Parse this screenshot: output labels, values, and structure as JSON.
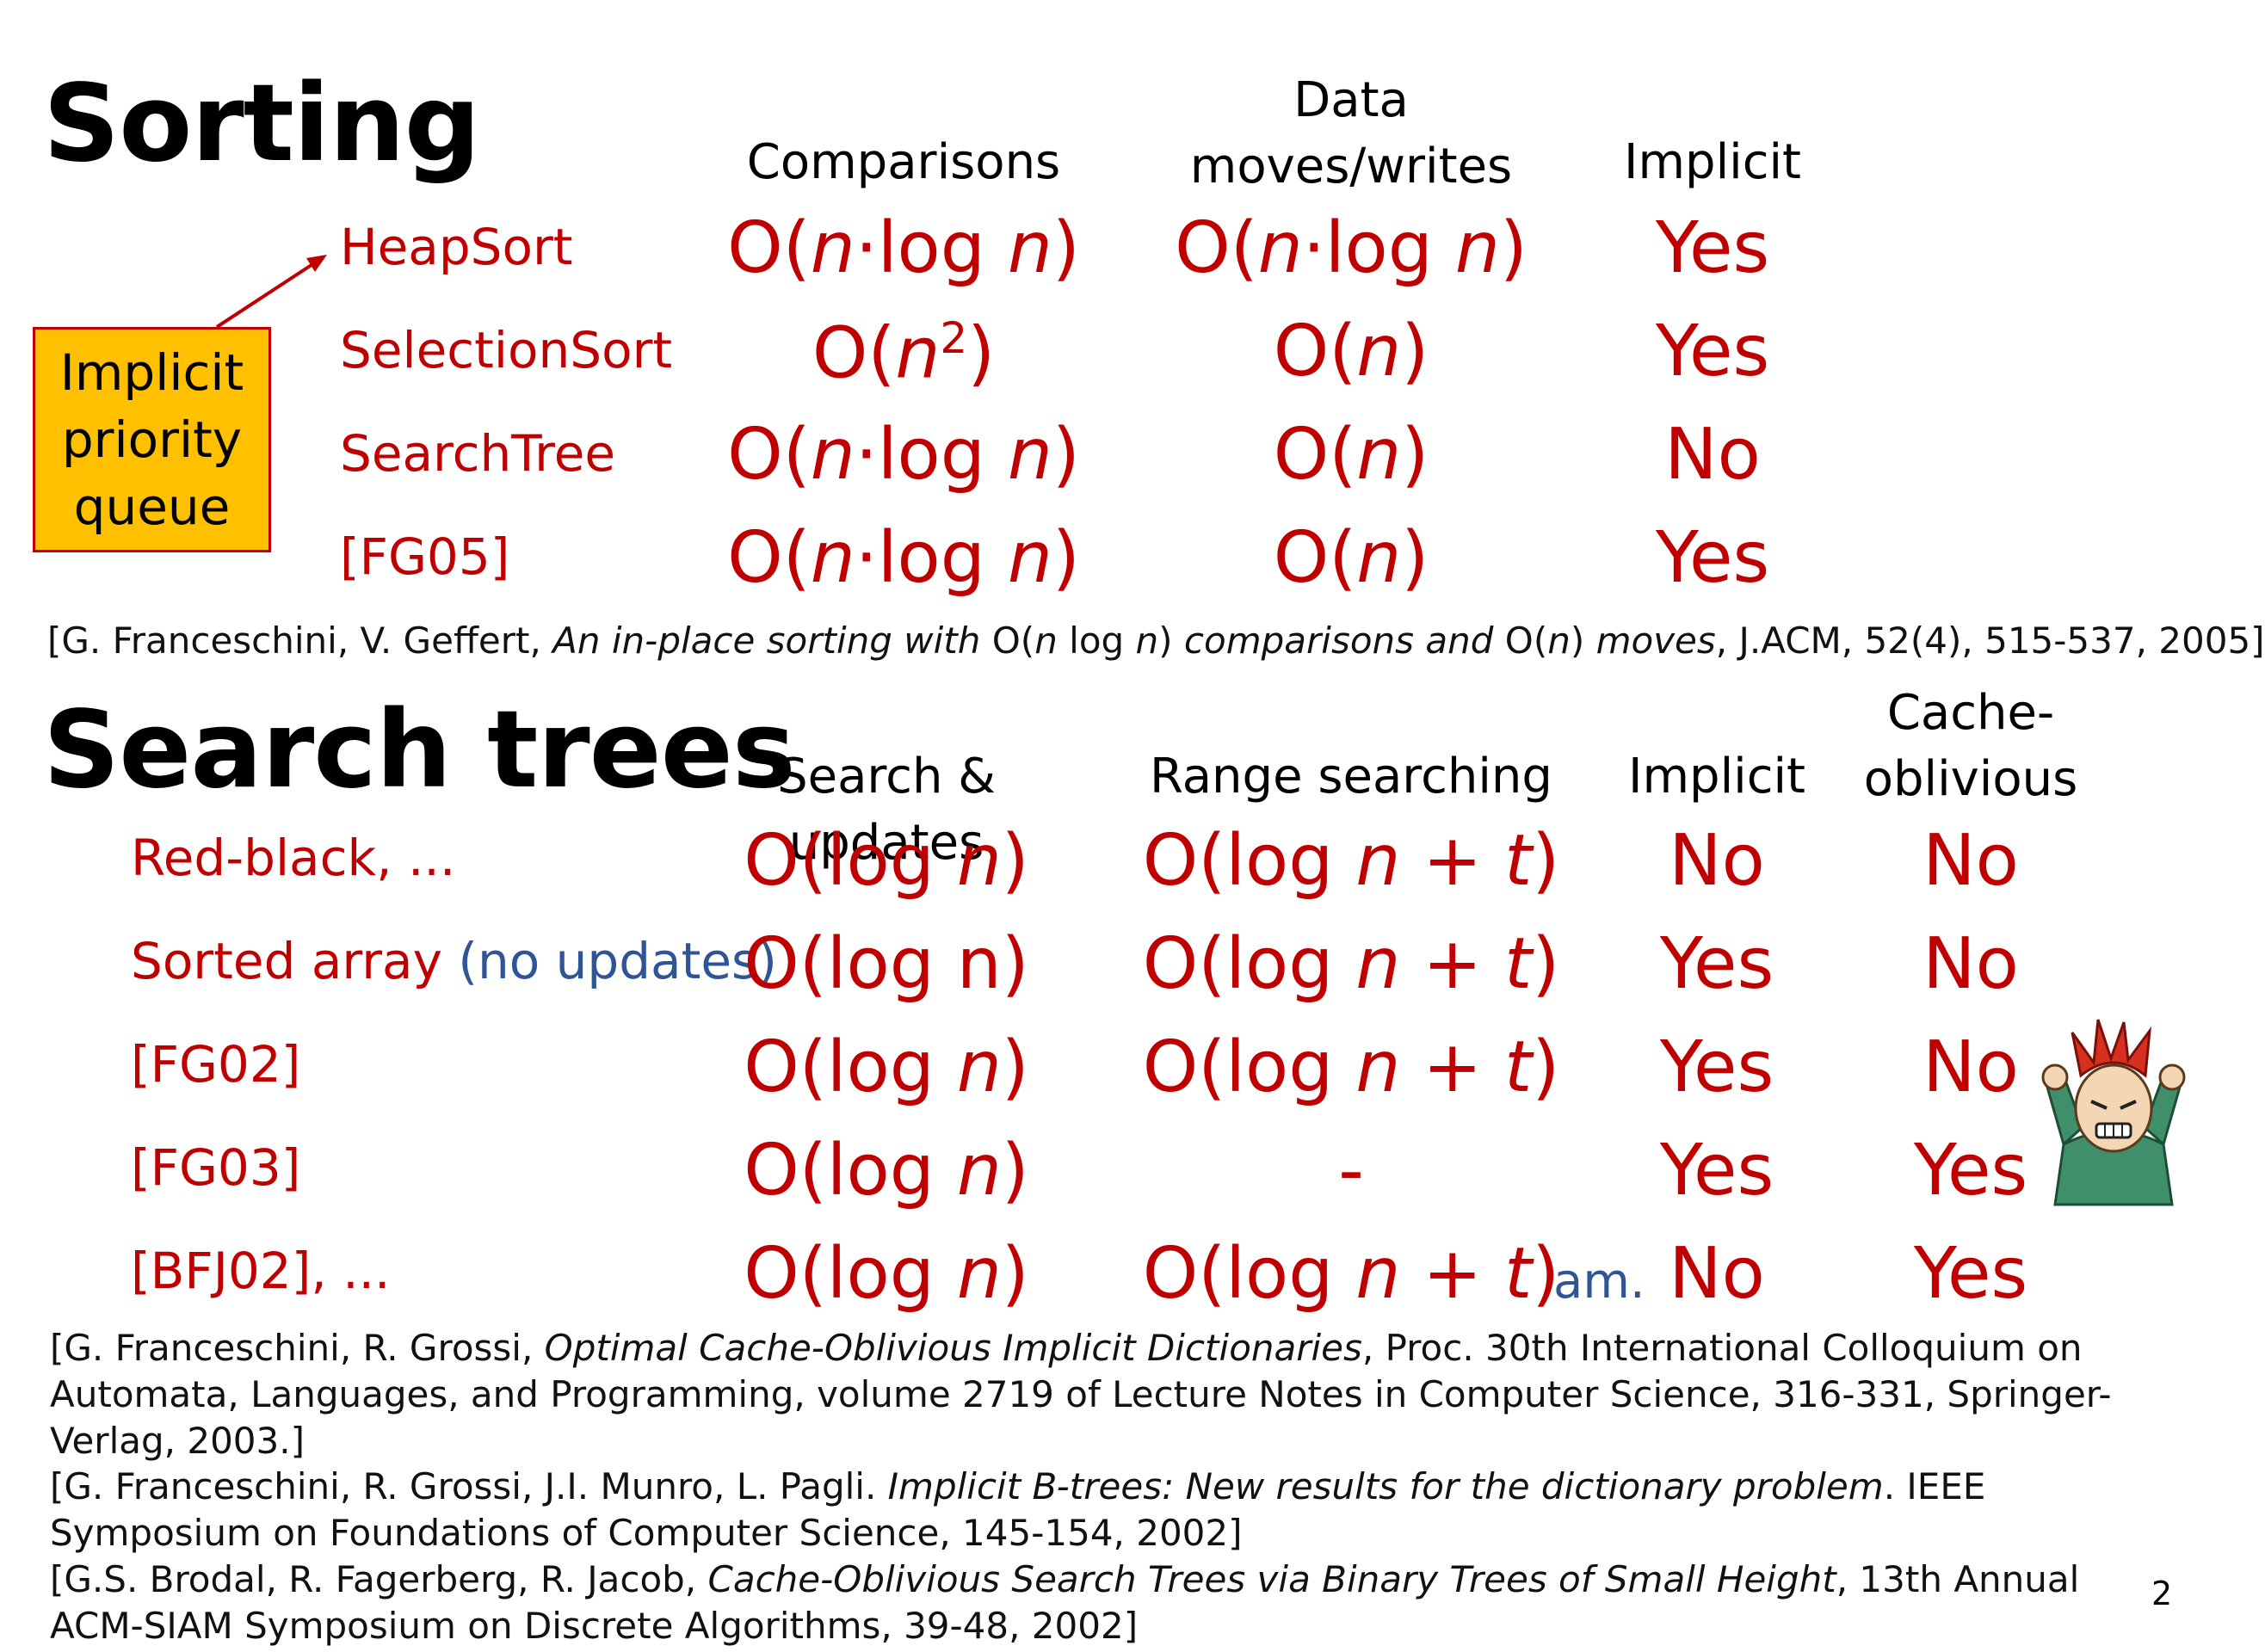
{
  "sorting": {
    "title": "Sorting",
    "headers": {
      "comparisons": "Comparisons",
      "data_moves_line1": "Data",
      "data_moves_line2": "moves/writes",
      "implicit": "Implicit"
    },
    "rows": [
      {
        "label": "HeapSort",
        "comparisons": "O(n·log n)",
        "moves": "O(n·log n)",
        "implicit": "Yes"
      },
      {
        "label": "SelectionSort",
        "comparisons": "O(n²)",
        "moves": "O(n)",
        "implicit": "Yes"
      },
      {
        "label": "SearchTree",
        "comparisons": "O(n·log n)",
        "moves": "O(n)",
        "implicit": "No"
      },
      {
        "label": "[FG05]",
        "comparisons": "O(n·log n)",
        "moves": "O(n)",
        "implicit": "Yes"
      }
    ],
    "callout": {
      "line1": "Implicit",
      "line2": "priority",
      "line3": "queue"
    },
    "reference": "[G. Franceschini, V. Geffert, An in-place sorting with O(n log n) comparisons and O(n) moves, J.ACM, 52(4), 515-537, 2005]"
  },
  "search_trees": {
    "title": "Search trees",
    "headers": {
      "search_updates": "Search & updates",
      "range_searching": "Range searching",
      "implicit": "Implicit",
      "cache_line1": "Cache-",
      "cache_line2": "oblivious"
    },
    "rows": [
      {
        "label": "Red-black, ...",
        "label_extra": "",
        "search": "O(log n)",
        "range": "O(log n + t)",
        "range_note": "",
        "implicit": "No",
        "cache": "No"
      },
      {
        "label": "Sorted array",
        "label_extra": "(no updates)",
        "search": "O(log n)",
        "range": "O(log n + t)",
        "range_note": "",
        "implicit": "Yes",
        "cache": "No"
      },
      {
        "label": "[FG02]",
        "label_extra": "",
        "search": "O(log n)",
        "range": "O(log n + t)",
        "range_note": "",
        "implicit": "Yes",
        "cache": "No"
      },
      {
        "label": "[FG03]",
        "label_extra": "",
        "search": "O(log n)",
        "range": "-",
        "range_note": "",
        "implicit": "Yes",
        "cache": "Yes"
      },
      {
        "label": "[BFJ02], ...",
        "label_extra": "",
        "search": "O(log n)",
        "range": "O(log n + t)",
        "range_note": "am.",
        "implicit": "No",
        "cache": "Yes"
      }
    ],
    "references": [
      "[G. Franceschini, R. Grossi, Optimal Cache-Oblivious Implicit Dictionaries, Proc. 30th International Colloquium on Automata, Languages, and Programming, volume 2719 of Lecture Notes in Computer Science, 316-331, Springer-Verlag, 2003.]",
      "[G. Franceschini, R. Grossi, J.I. Munro, L. Pagli. Implicit B-trees: New results for the dictionary problem. IEEE Symposium on Foundations of Computer Science, 145-154, 2002]",
      "[G.S. Brodal, R. Fagerberg, R. Jacob, Cache-Oblivious Search Trees via Binary Trees of Small Height, 13th Annual ACM-SIAM Symposium on Discrete Algorithms, 39-48, 2002]"
    ]
  },
  "page_number": "2",
  "icons": {
    "frustrated": "frustrated-person-icon"
  },
  "colors": {
    "accent_red": "#c00000",
    "note_blue": "#2f5597",
    "callout_fill": "#ffc000"
  }
}
